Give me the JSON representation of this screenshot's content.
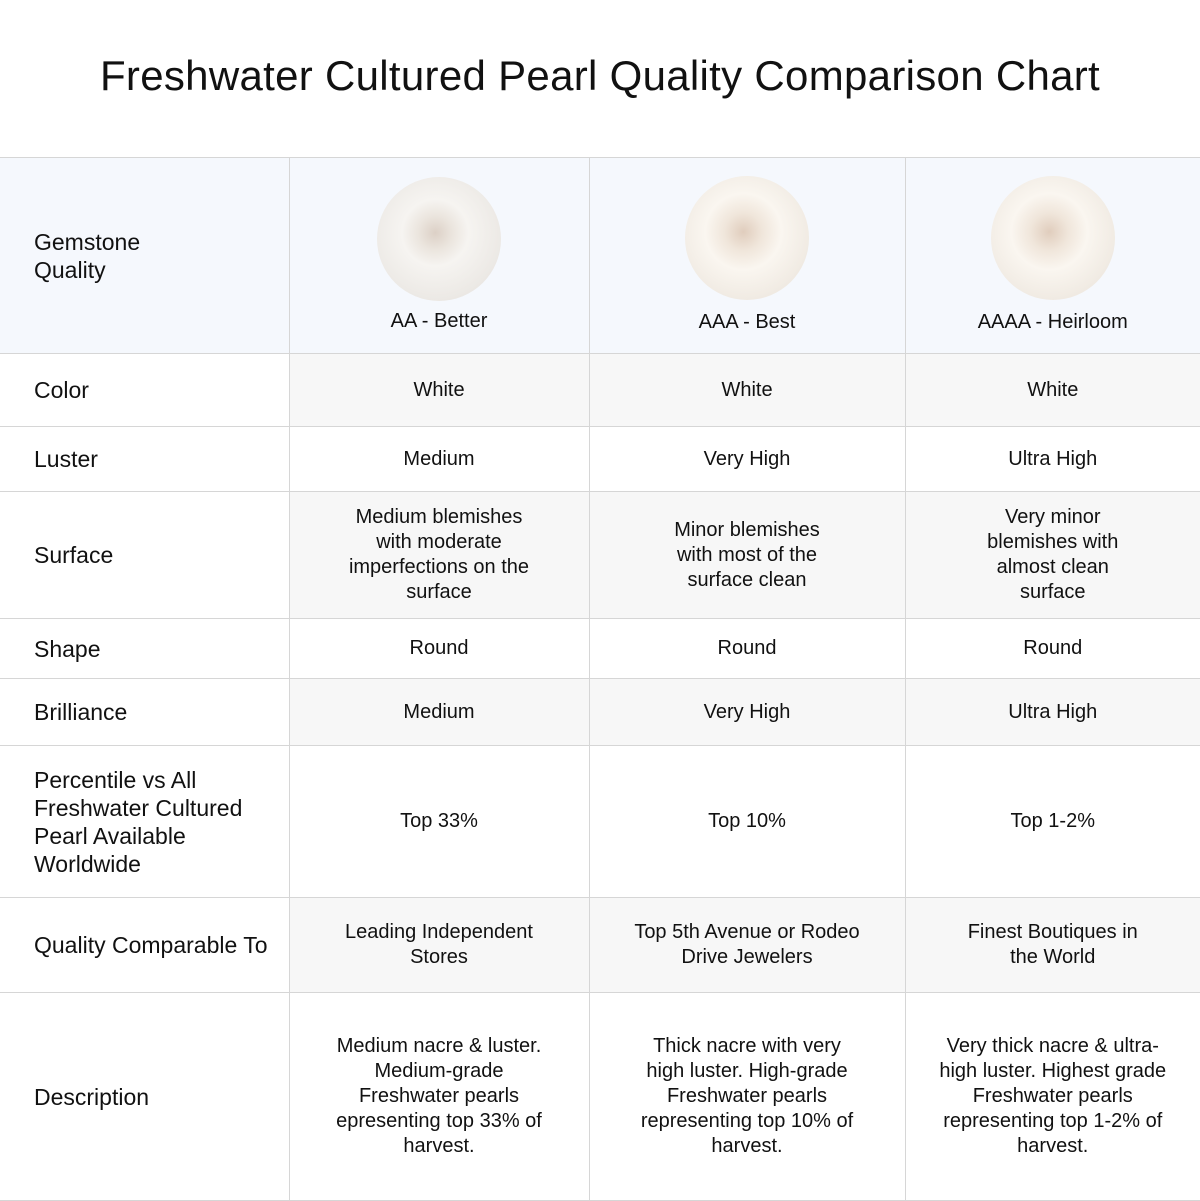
{
  "title": "Freshwater Cultured Pearl Quality Comparison Chart",
  "header": {
    "label": "Gemstone Quality",
    "grades": [
      "AA - Better",
      "AAA - Best",
      "AAAA - Heirloom"
    ]
  },
  "rows": [
    {
      "label": "Color",
      "values": [
        "White",
        "White",
        "White"
      ]
    },
    {
      "label": "Luster",
      "values": [
        "Medium",
        "Very High",
        "Ultra High"
      ]
    },
    {
      "label": "Surface",
      "values": [
        "Medium blemishes with moderate imperfections on the surface",
        "Minor blemishes with most of the surface clean",
        "Very minor blemishes with almost clean surface"
      ]
    },
    {
      "label": "Shape",
      "values": [
        "Round",
        "Round",
        "Round"
      ]
    },
    {
      "label": "Brilliance",
      "values": [
        "Medium",
        "Very High",
        "Ultra High"
      ]
    },
    {
      "label": "Percentile vs All Freshwater Cultured Pearl Available Worldwide",
      "values": [
        "Top 33%",
        "Top 10%",
        "Top 1-2%"
      ]
    },
    {
      "label": "Quality Comparable To",
      "values": [
        "Leading Independent Stores",
        "Top 5th Avenue or Rodeo Drive Jewelers",
        "Finest Boutiques in the World"
      ]
    },
    {
      "label": "Description",
      "values": [
        "Medium nacre & luster. Medium-grade Freshwater pearls epresenting top 33% of harvest.",
        "Thick nacre with very high luster. High-grade Freshwater pearls representing top 10% of harvest.",
        "Very thick nacre & ultra-high luster. Highest grade Freshwater pearls representing top 1-2% of harvest."
      ]
    }
  ]
}
